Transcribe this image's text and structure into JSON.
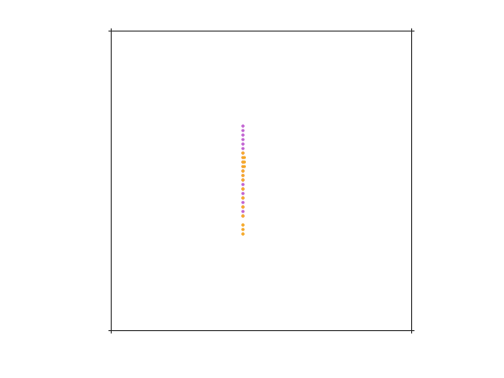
{
  "chart_data": {
    "type": "scatter",
    "title": "",
    "xlabel": "",
    "ylabel": "",
    "xlim": [
      -1,
      1
    ],
    "ylim": [
      -1,
      1
    ],
    "grid": false,
    "box": true,
    "colors": {
      "axes": "#262626",
      "background": "#ffffff"
    },
    "series": [
      {
        "color": "#c060d0",
        "x": [
          -0.123,
          -0.123,
          -0.123,
          -0.123,
          -0.123,
          -0.123,
          -0.123,
          -0.123,
          -0.123,
          -0.123,
          -0.123,
          -0.123,
          -0.123,
          -0.123,
          -0.123,
          -0.123,
          -0.123,
          -0.123,
          -0.123,
          -0.123,
          -0.123
        ],
        "y": [
          0.366,
          0.336,
          0.306,
          0.276,
          0.246,
          0.216,
          0.186,
          0.156,
          0.126,
          0.096,
          0.066,
          0.036,
          0.006,
          -0.024,
          -0.054,
          -0.084,
          -0.114,
          -0.144,
          -0.174,
          -0.204,
          -0.234
        ]
      },
      {
        "color": "#f5a623",
        "x": [
          -0.123,
          -0.123,
          -0.114,
          -0.123,
          -0.114,
          -0.123,
          -0.114,
          -0.123,
          -0.123,
          -0.123,
          -0.123,
          -0.123,
          -0.123,
          -0.123,
          -0.123,
          -0.123,
          -0.123
        ],
        "y": [
          0.186,
          0.156,
          0.156,
          0.126,
          0.126,
          0.096,
          0.096,
          0.066,
          0.036,
          0.006,
          -0.054,
          -0.114,
          -0.174,
          -0.234,
          -0.294,
          -0.324,
          -0.354
        ]
      }
    ]
  }
}
